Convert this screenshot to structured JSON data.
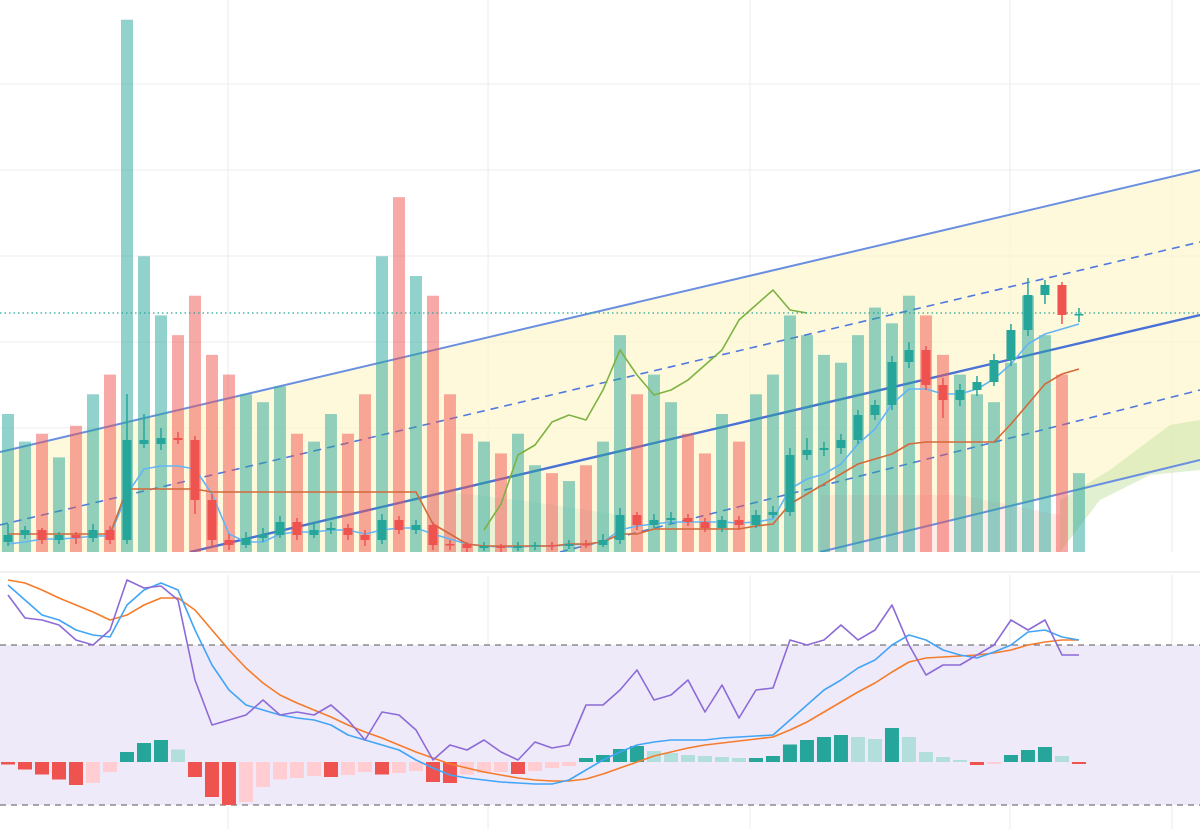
{
  "chart_data": [
    {
      "type": "candlestick",
      "categories": [
        null,
        null,
        null,
        null,
        null,
        null,
        null,
        null,
        null,
        null,
        null,
        null,
        null,
        null,
        null,
        null,
        null,
        null,
        null,
        null,
        null,
        null,
        null,
        null,
        null,
        null,
        null,
        null,
        null,
        null,
        null,
        null,
        null,
        null,
        null,
        null,
        null,
        null,
        null,
        null,
        null,
        null,
        null,
        null,
        null,
        null,
        null,
        null,
        null,
        null,
        null,
        null,
        null,
        null,
        null,
        null,
        null,
        null,
        null,
        null,
        null,
        null,
        null,
        null
      ],
      "open": [
        -28,
        -21,
        -16,
        -26,
        -21,
        -24,
        -16,
        -26,
        70,
        70,
        76,
        74,
        14,
        -26,
        -31,
        -24,
        -21,
        -8,
        -21,
        -16,
        -14,
        -21,
        -26,
        -6,
        -16,
        -11,
        -30,
        -30,
        -34,
        -32,
        -34,
        -32,
        -31,
        -32,
        -30,
        -31,
        -26,
        -1,
        -11,
        -6,
        -4,
        -8,
        -14,
        -6,
        -11,
        -1,
        2,
        59,
        64,
        66,
        74,
        99,
        109,
        152,
        164,
        129,
        114,
        124,
        132,
        154,
        184,
        219,
        229,
        199
      ],
      "high": [
        -10,
        -12,
        -14,
        -18,
        -18,
        -10,
        -12,
        120,
        100,
        86,
        82,
        78,
        20,
        -20,
        -18,
        -14,
        -2,
        -4,
        -10,
        -8,
        -10,
        -16,
        0,
        -2,
        -6,
        -8,
        -26,
        -28,
        -28,
        -30,
        -28,
        -28,
        -28,
        -26,
        -26,
        -20,
        6,
        2,
        0,
        2,
        0,
        -4,
        -2,
        -2,
        4,
        8,
        66,
        76,
        72,
        80,
        104,
        114,
        158,
        172,
        168,
        136,
        130,
        138,
        160,
        190,
        236,
        234,
        232,
        206
      ],
      "low": [
        -32,
        -25,
        -30,
        -30,
        -30,
        -28,
        -30,
        -30,
        66,
        64,
        70,
        0,
        -32,
        -36,
        -34,
        -28,
        -24,
        -26,
        -24,
        -20,
        -26,
        -32,
        -30,
        -20,
        -20,
        -36,
        -36,
        -38,
        -37,
        -38,
        -37,
        -36,
        -36,
        -35,
        -34,
        -33,
        -30,
        -16,
        -14,
        -10,
        -12,
        -18,
        -18,
        -16,
        -14,
        -4,
        -2,
        54,
        58,
        60,
        70,
        94,
        104,
        146,
        124,
        96,
        108,
        118,
        128,
        148,
        178,
        210,
        190,
        192
      ],
      "close": [
        -21,
        -16,
        -26,
        -21,
        -24,
        -16,
        -26,
        74,
        74,
        76,
        74,
        14,
        -26,
        -31,
        -24,
        -21,
        -8,
        -21,
        -16,
        -14,
        -21,
        -26,
        -6,
        -16,
        -11,
        -31,
        -31,
        -34,
        -32,
        -34,
        -32,
        -31,
        -32,
        -30,
        -31,
        -26,
        -1,
        -11,
        -6,
        -4,
        -8,
        -14,
        -6,
        -11,
        -1,
        2,
        59,
        64,
        66,
        74,
        99,
        109,
        152,
        164,
        129,
        114,
        124,
        132,
        154,
        184,
        219,
        229,
        199,
        200
      ],
      "up_color": "#26a69a",
      "down_color": "#ef5350",
      "volume": {
        "axis": "y2",
        "up_color": "rgba(38,166,154,0.5)",
        "down_color": "rgba(239,83,80,0.5)",
        "values": [
          35,
          28,
          30,
          24,
          32,
          40,
          45,
          135,
          75,
          60,
          55,
          65,
          50,
          45,
          40,
          38,
          42,
          30,
          28,
          35,
          30,
          40,
          75,
          90,
          70,
          65,
          40,
          30,
          28,
          25,
          30,
          22,
          20,
          18,
          22,
          28,
          55,
          40,
          45,
          38,
          30,
          25,
          35,
          28,
          40,
          45,
          60,
          55,
          50,
          48,
          55,
          62,
          58,
          65,
          60,
          50,
          45,
          40,
          38,
          48,
          65,
          55,
          45,
          20
        ]
      },
      "series": [
        {
          "color": "#7cb342",
          "values": [
            null,
            null,
            null,
            null,
            null,
            null,
            null,
            null,
            null,
            null,
            null,
            null,
            null,
            null,
            null,
            null,
            null,
            null,
            null,
            null,
            null,
            null,
            null,
            null,
            null,
            null,
            null,
            null,
            -16,
            10,
            59,
            69,
            92,
            99,
            94,
            124,
            164,
            139,
            119,
            124,
            134,
            149,
            164,
            194,
            209,
            224,
            204,
            201,
            null,
            null,
            null,
            null,
            null,
            null,
            null,
            null,
            null,
            null,
            null,
            null,
            null,
            null,
            null,
            null
          ]
        },
        {
          "color": "#64b5f6",
          "values": [
            -30,
            -28,
            -25,
            -25,
            -24,
            -22,
            -22,
            20,
            45,
            48,
            48,
            45,
            20,
            -20,
            -28,
            -28,
            -20,
            -18,
            -18,
            -16,
            -16,
            -20,
            -16,
            -14,
            -14,
            -20,
            -25,
            -30,
            -32,
            -33,
            -33,
            -32,
            -32,
            -31,
            -30,
            -28,
            -16,
            -12,
            -10,
            -8,
            -8,
            -8,
            -8,
            -9,
            -8,
            -5,
            25,
            35,
            40,
            50,
            70,
            85,
            110,
            125,
            125,
            120,
            120,
            125,
            135,
            150,
            170,
            180,
            185,
            190
          ]
        },
        {
          "color": "#d4693a",
          "values": [
            -20,
            -20,
            -20,
            -20,
            -20,
            -20,
            -20,
            25,
            25,
            25,
            25,
            25,
            22,
            22,
            22,
            22,
            22,
            22,
            22,
            22,
            22,
            22,
            22,
            22,
            22,
            -10,
            -20,
            -30,
            -32,
            -32,
            -32,
            -32,
            -32,
            -30,
            -30,
            -28,
            -20,
            -20,
            -15,
            -15,
            -15,
            -15,
            -15,
            -15,
            -12,
            -10,
            10,
            20,
            30,
            40,
            50,
            55,
            60,
            70,
            72,
            72,
            72,
            72,
            72,
            90,
            110,
            130,
            140,
            145
          ]
        }
      ],
      "price_line": 201,
      "price_line_color": "#26a69a",
      "xlim": [
        -0.47,
        70.12
      ],
      "xticks": [
        12.94,
        28.24,
        43.65,
        58.94,
        68.47
      ],
      "ylim": [
        -38,
        514
      ],
      "yticks": [
        86,
        172,
        258,
        344,
        430
      ],
      "y2lim": [
        0,
        140
      ],
      "grid": true
    },
    {
      "type": "oscillator",
      "categories": [
        null,
        null,
        null,
        null,
        null,
        null,
        null,
        null,
        null,
        null,
        null,
        null,
        null,
        null,
        null,
        null,
        null,
        null,
        null,
        null,
        null,
        null,
        null,
        null,
        null,
        null,
        null,
        null,
        null,
        null,
        null,
        null,
        null,
        null,
        null,
        null,
        null,
        null,
        null,
        null,
        null,
        null,
        null,
        null,
        null,
        null,
        null,
        null,
        null,
        null,
        null,
        null,
        null,
        null,
        null,
        null,
        null,
        null,
        null,
        null,
        null,
        null,
        null,
        null
      ],
      "xlim": [
        -0.47,
        70.12
      ],
      "xticks": [
        12.94,
        28.24,
        43.65,
        58.94,
        68.47
      ],
      "ylim": [
        0,
        100
      ],
      "yticks": [
        8,
        72
      ],
      "band_color": "#efeafa",
      "series": [
        {
          "color": "#8c6bd6",
          "values": [
            92,
            82.8,
            82,
            80,
            74,
            72,
            78,
            98,
            94.8,
            95.6,
            90,
            58,
            40,
            42,
            44,
            50,
            44,
            45.2,
            44,
            48,
            42,
            34,
            45.2,
            44,
            38,
            26,
            32,
            30,
            34,
            29.2,
            26,
            33.2,
            30.8,
            32,
            48,
            48,
            54,
            62,
            50,
            52,
            58,
            45.2,
            56,
            42.8,
            54,
            54.8,
            74,
            72,
            74,
            80,
            74,
            78,
            88,
            72,
            60,
            64,
            64,
            68,
            72,
            82,
            78,
            82,
            68,
            68
          ]
        },
        {
          "color": "#42a5f5",
          "values": [
            96,
            90,
            84,
            82,
            78,
            76,
            75.2,
            88,
            94,
            96.8,
            94,
            78,
            64,
            54,
            48,
            46,
            44,
            42.8,
            42,
            40,
            36,
            34,
            32,
            30,
            26,
            22.8,
            20,
            18.8,
            18,
            17.2,
            16.8,
            16.4,
            16.4,
            18,
            22,
            26,
            29.2,
            32,
            33.2,
            34,
            34,
            34,
            34.8,
            35.2,
            35.6,
            36,
            42,
            48,
            54,
            58,
            62.8,
            66,
            72,
            76,
            74,
            70,
            68,
            66.8,
            69.2,
            72,
            77.2,
            78,
            75.2,
            74
          ]
        },
        {
          "color": "#f57c2a",
          "values": [
            98,
            96.8,
            94,
            90.8,
            88,
            85.2,
            82,
            84,
            88,
            90.8,
            90.8,
            86,
            78,
            70,
            62.8,
            56.8,
            52,
            48.8,
            46,
            43.2,
            40,
            37.2,
            34.8,
            32,
            29.2,
            26.8,
            24.4,
            22.8,
            21.2,
            20,
            18.8,
            18,
            17.6,
            17.6,
            18.4,
            20.4,
            22.8,
            25.2,
            27.6,
            29.2,
            30.8,
            32,
            32.8,
            33.6,
            34.4,
            35.2,
            38,
            41.2,
            45.2,
            49.2,
            53.2,
            56.8,
            61.2,
            65.2,
            66.8,
            67.2,
            67.6,
            68,
            68.8,
            70,
            72,
            73.2,
            74,
            74
          ]
        }
      ],
      "histogram": {
        "axis": "y2",
        "colors": {
          "up_strong": "#26a69a",
          "up_weak": "#b2dfdb",
          "down_strong": "#ef5350",
          "down_weak": "#ffcdd2"
        },
        "values": [
          -0.5,
          -1.5,
          -2.5,
          -3.5,
          -4.6,
          -4.2,
          -2,
          2,
          3.8,
          4.4,
          2.5,
          -3,
          -7,
          -8.6,
          -8,
          -5,
          -3.5,
          -3.2,
          -2.8,
          -3,
          -2.6,
          -2,
          -2.5,
          -2.2,
          -1.8,
          -4,
          -4.2,
          -2.5,
          -2.2,
          -2,
          -2.4,
          -1.8,
          -1.2,
          -0.8,
          0.8,
          1.4,
          2.6,
          3.2,
          2.2,
          1.8,
          1.4,
          1.2,
          1,
          0.8,
          0.8,
          1.2,
          3.5,
          4.4,
          5,
          5.4,
          5,
          4.6,
          6.8,
          5,
          2,
          1,
          0.4,
          -0.6,
          -0.4,
          1.4,
          2.4,
          3,
          1.2,
          -0.4
        ]
      },
      "y2lim": [
        -12.6,
        37.4
      ],
      "grid": true
    }
  ]
}
